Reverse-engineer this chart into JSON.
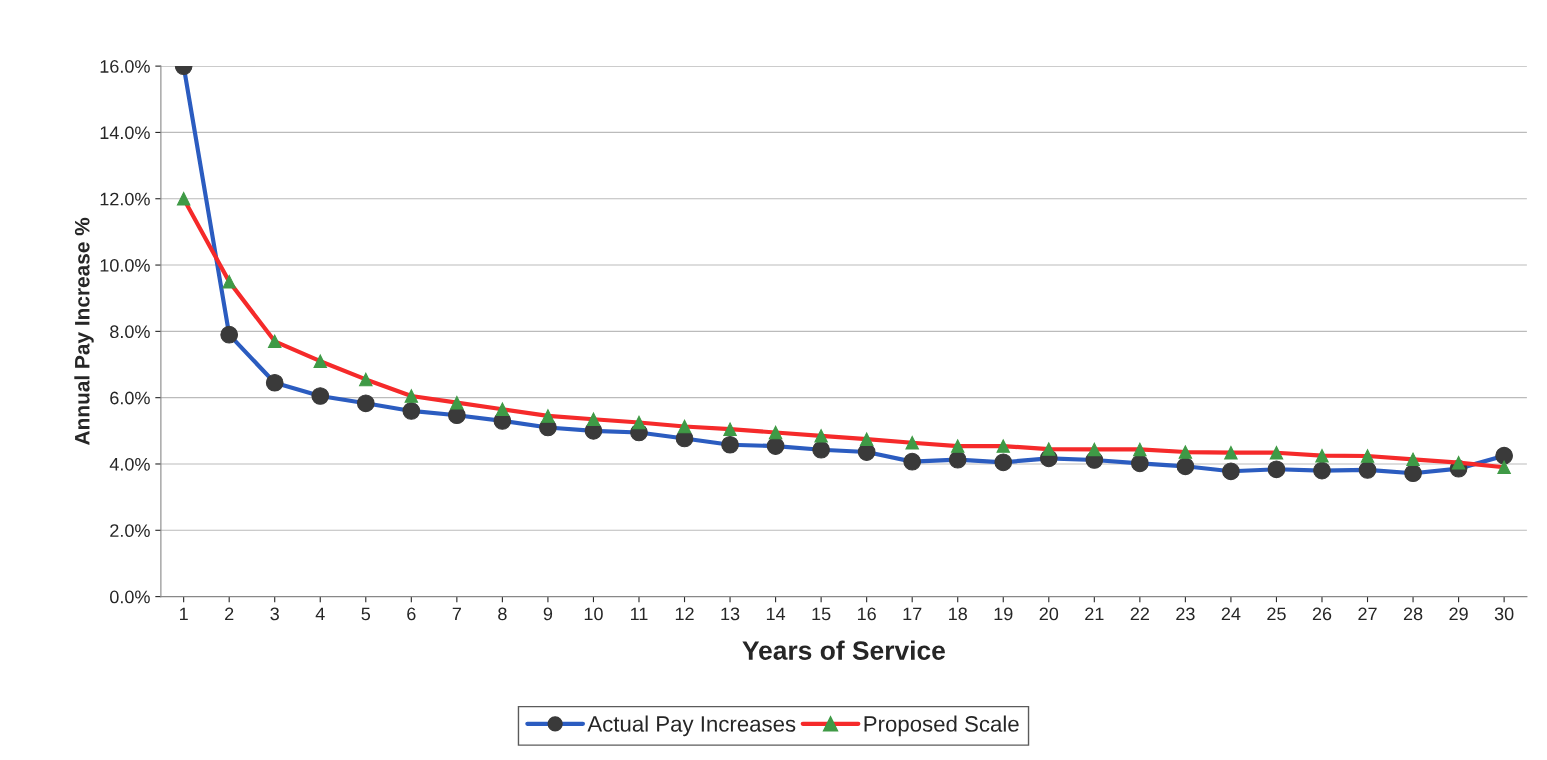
{
  "chart_data": {
    "type": "line",
    "xlabel": "Years of Service",
    "ylabel": "Annual Pay Increase %",
    "categories": [
      "1",
      "2",
      "3",
      "4",
      "5",
      "6",
      "7",
      "8",
      "9",
      "10",
      "11",
      "12",
      "13",
      "14",
      "15",
      "16",
      "17",
      "18",
      "19",
      "20",
      "21",
      "22",
      "23",
      "24",
      "25",
      "26",
      "27",
      "28",
      "29",
      "30"
    ],
    "series": [
      {
        "name": "Actual Pay Increases",
        "color": "#2b5cc0",
        "marker": "circle",
        "values": [
          16.0,
          7.9,
          6.45,
          6.05,
          5.83,
          5.6,
          5.47,
          5.3,
          5.1,
          5.0,
          4.95,
          4.77,
          4.58,
          4.54,
          4.43,
          4.36,
          4.07,
          4.13,
          4.05,
          4.17,
          4.12,
          4.02,
          3.93,
          3.78,
          3.84,
          3.8,
          3.82,
          3.72,
          3.86,
          4.25
        ]
      },
      {
        "name": "Proposed Scale",
        "color": "#f52a2a",
        "marker": "triangle",
        "values": [
          12.0,
          9.5,
          7.7,
          7.1,
          6.55,
          6.05,
          5.85,
          5.65,
          5.45,
          5.35,
          5.25,
          5.13,
          5.05,
          4.95,
          4.85,
          4.75,
          4.64,
          4.54,
          4.54,
          4.45,
          4.44,
          4.44,
          4.36,
          4.34,
          4.34,
          4.25,
          4.24,
          4.14,
          4.04,
          3.9
        ]
      }
    ],
    "ylim": [
      0,
      16
    ],
    "yticks": [
      {
        "value": 0,
        "label": "0.0%"
      },
      {
        "value": 2,
        "label": "2.0%"
      },
      {
        "value": 4,
        "label": "4.0%"
      },
      {
        "value": 6,
        "label": "6.0%"
      },
      {
        "value": 8,
        "label": "8.0%"
      },
      {
        "value": 10,
        "label": "10.0%"
      },
      {
        "value": 12,
        "label": "12.0%"
      },
      {
        "value": 14,
        "label": "14.0%"
      },
      {
        "value": 16,
        "label": "16.0%"
      }
    ],
    "grid": "y",
    "legend": "bottom",
    "line_style": "solid"
  }
}
